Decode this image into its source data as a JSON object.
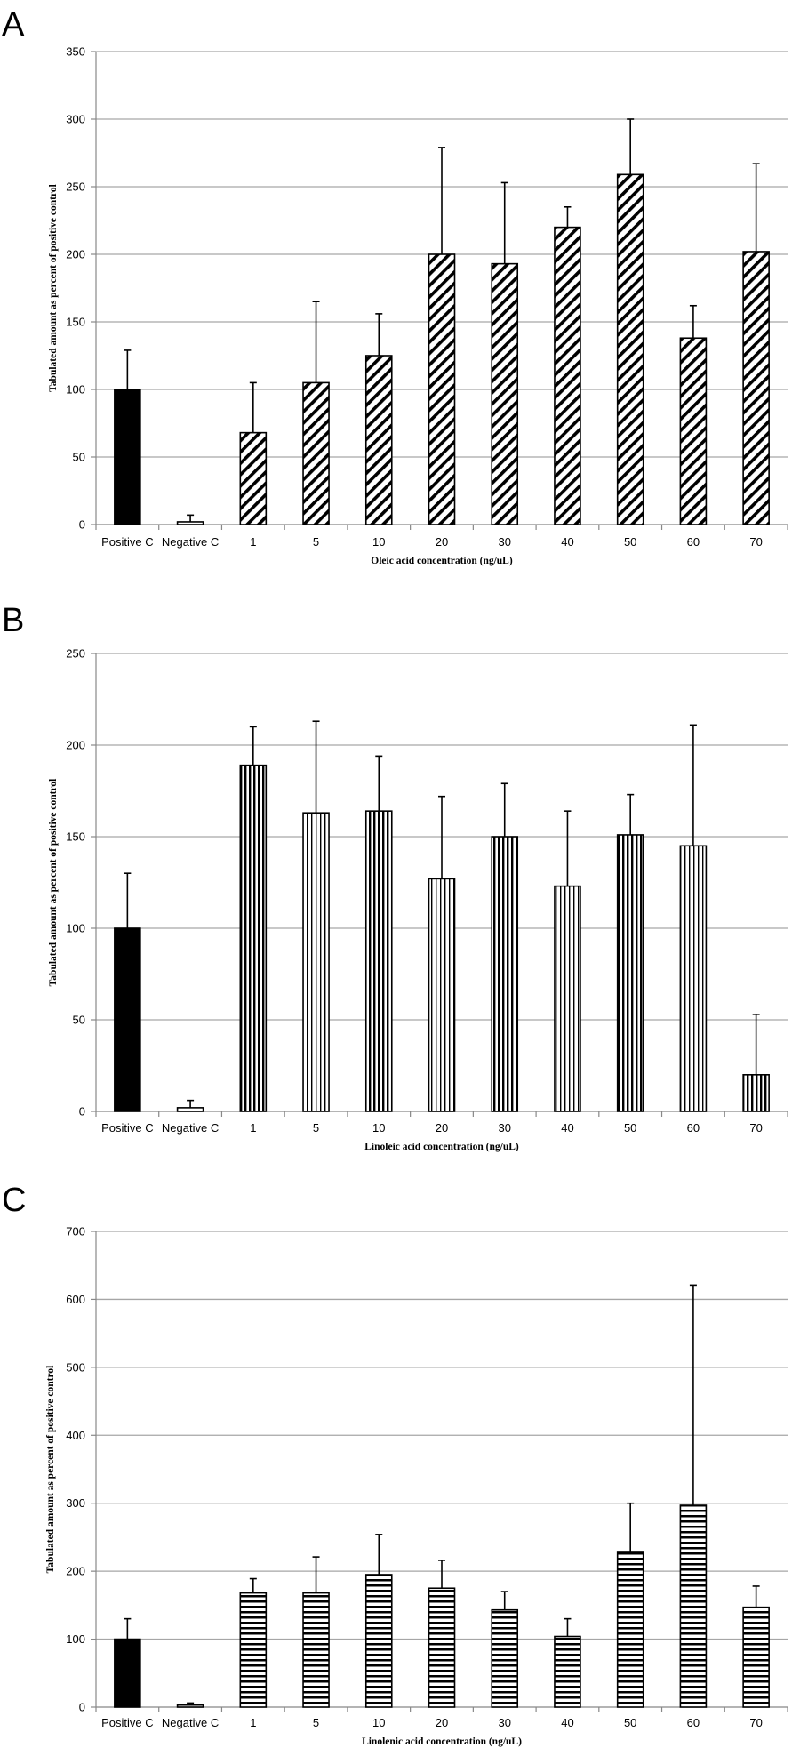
{
  "chart_data": [
    {
      "type": "bar",
      "panel_label": "A",
      "title": "",
      "xlabel": "Oleic acid concentration (ng/uL)",
      "ylabel": "Tabulated amount as percent of positive control",
      "ylim": [
        0,
        350
      ],
      "yticks": [
        0,
        50,
        100,
        150,
        200,
        250,
        300,
        350
      ],
      "categories": [
        "Positive C",
        "Negative C",
        "1",
        "5",
        "10",
        "20",
        "30",
        "40",
        "50",
        "60",
        "70"
      ],
      "values": [
        100,
        2,
        68,
        105,
        125,
        200,
        193,
        220,
        259,
        138,
        202
      ],
      "errors": [
        29,
        5,
        37,
        60,
        31,
        79,
        60,
        15,
        41,
        24,
        65
      ],
      "fills": [
        "solid",
        "outline",
        "diagonal",
        "diagonal",
        "diagonal",
        "diagonal",
        "diagonal",
        "diagonal",
        "diagonal",
        "diagonal",
        "diagonal"
      ],
      "grid": true
    },
    {
      "type": "bar",
      "panel_label": "B",
      "title": "",
      "xlabel": "Linoleic acid concentration (ng/uL)",
      "ylabel": "Tabulated amount as percent of positive control",
      "ylim": [
        0,
        250
      ],
      "yticks": [
        0,
        50,
        100,
        150,
        200,
        250
      ],
      "categories": [
        "Positive C",
        "Negative C",
        "1",
        "5",
        "10",
        "20",
        "30",
        "40",
        "50",
        "60",
        "70"
      ],
      "values": [
        100,
        2,
        189,
        163,
        164,
        127,
        150,
        123,
        151,
        145,
        20
      ],
      "errors": [
        30,
        4,
        21,
        50,
        30,
        45,
        29,
        41,
        22,
        66,
        33
      ],
      "fills": [
        "solid",
        "outline",
        "vertical-bold",
        "vertical",
        "vertical-bold",
        "vertical",
        "vertical-bold",
        "vertical",
        "vertical-bold",
        "vertical",
        "vertical-bold"
      ],
      "grid": true
    },
    {
      "type": "bar",
      "panel_label": "C",
      "title": "",
      "xlabel": "Linolenic acid concentration (ng/uL)",
      "ylabel": "Tabulated amount as percent of positive control",
      "ylim": [
        0,
        700
      ],
      "yticks": [
        0,
        100,
        200,
        300,
        400,
        500,
        600,
        700
      ],
      "categories": [
        "Positive C",
        "Negative C",
        "1",
        "5",
        "10",
        "20",
        "30",
        "40",
        "50",
        "60",
        "70"
      ],
      "values": [
        100,
        3,
        168,
        168,
        195,
        175,
        143,
        104,
        229,
        297,
        147
      ],
      "errors": [
        30,
        3,
        21,
        53,
        59,
        41,
        27,
        26,
        71,
        324,
        31
      ],
      "fills": [
        "solid",
        "outline",
        "horizontal",
        "horizontal",
        "horizontal",
        "horizontal",
        "horizontal",
        "horizontal",
        "horizontal",
        "horizontal",
        "horizontal"
      ],
      "grid": true
    }
  ],
  "colors": {
    "bar": "#000000",
    "grid": "#a6a6a6",
    "background": "#ffffff"
  }
}
